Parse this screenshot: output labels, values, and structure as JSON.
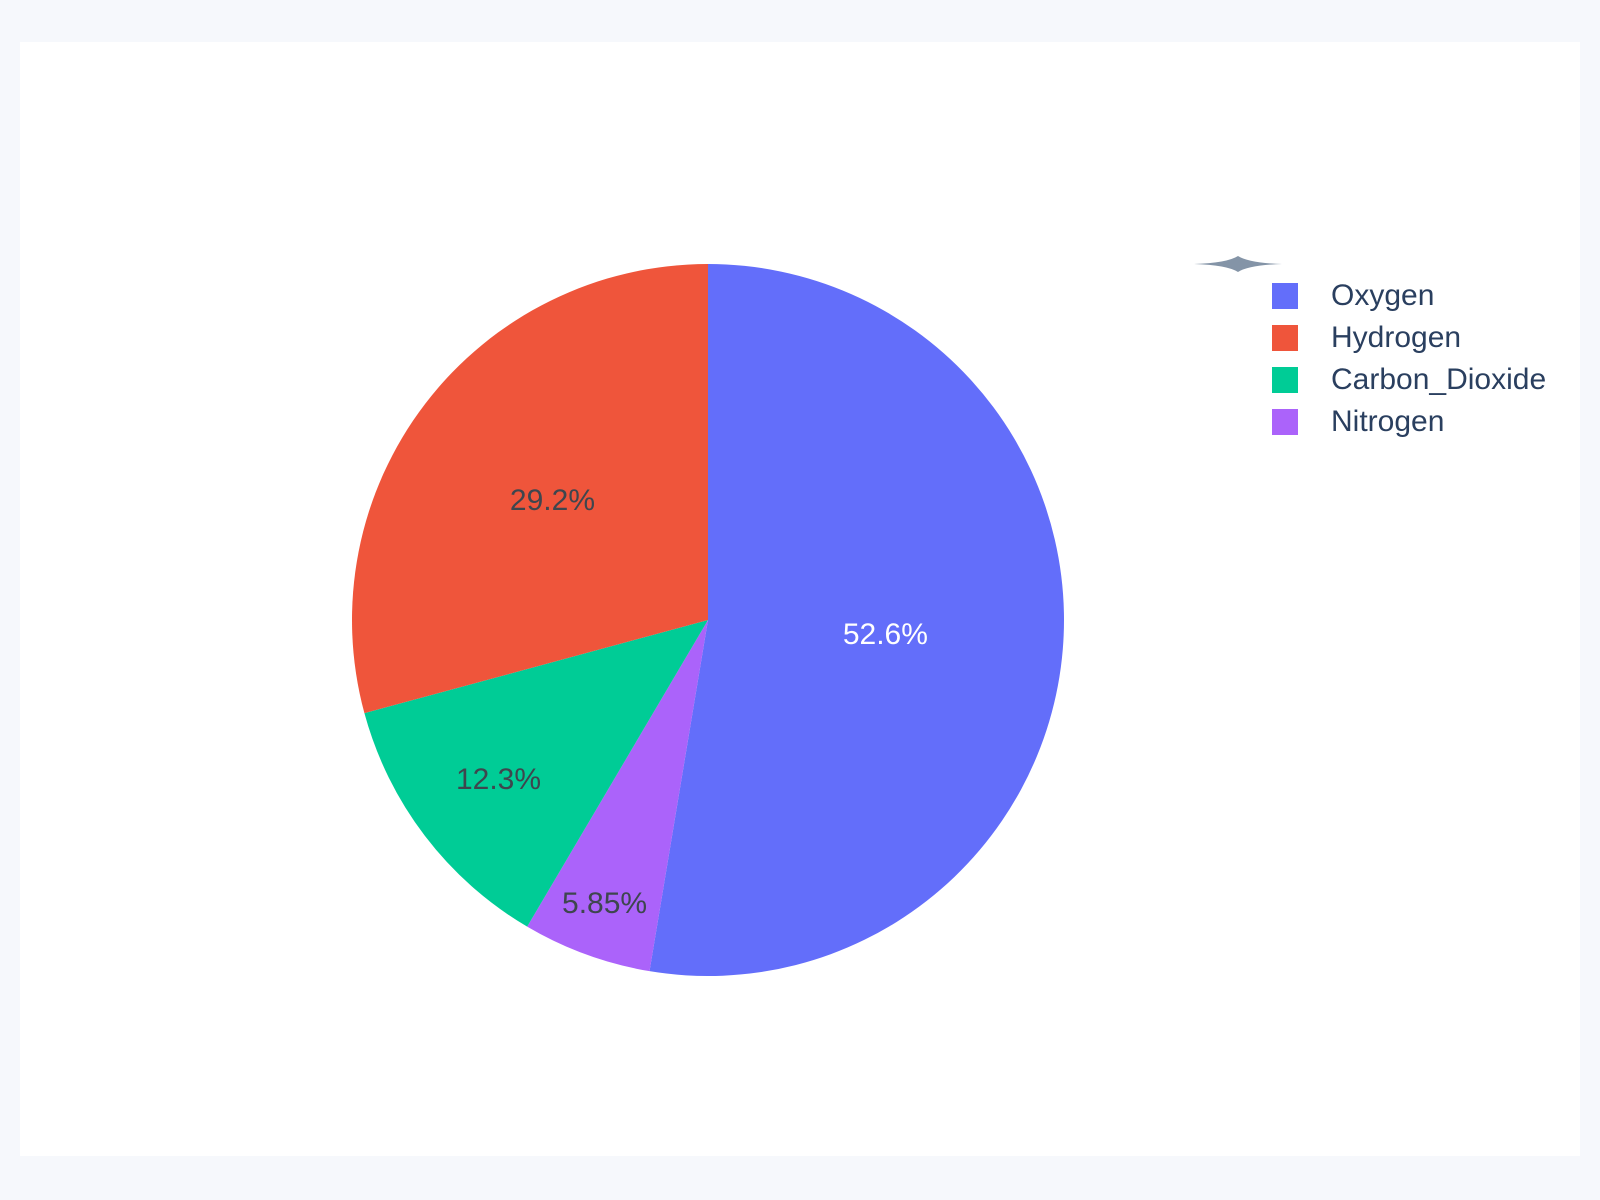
{
  "page": {
    "background_color": "#F6F8FC",
    "card_background_color": "#FFFFFF"
  },
  "chart_data": {
    "type": "pie",
    "title": "",
    "categories": [
      "Oxygen",
      "Hydrogen",
      "Carbon_Dioxide",
      "Nitrogen"
    ],
    "values": [
      52.6,
      29.2,
      12.3,
      5.85
    ],
    "value_labels": [
      "52.6%",
      "29.2%",
      "12.3%",
      "5.85%"
    ],
    "colors": [
      "#636EFA",
      "#EF553B",
      "#00CC96",
      "#AB63FA"
    ],
    "label_text_colors": [
      "#FFFFFF",
      "#3E464E",
      "#3E464E",
      "#3E464E"
    ],
    "legend_position": "right",
    "legend_text_color": "#2A3F5F",
    "layout": {
      "start_angle_deg": 0,
      "first_slice_direction": "clockwise-from-top",
      "remaining_slices_direction": "counterclockwise-from-top",
      "label_radius_factors": [
        0.5,
        0.55,
        0.74,
        0.85
      ],
      "pie_radius_px": 356
    }
  },
  "icons": {
    "plotly_logo_color": "#8494A7"
  }
}
